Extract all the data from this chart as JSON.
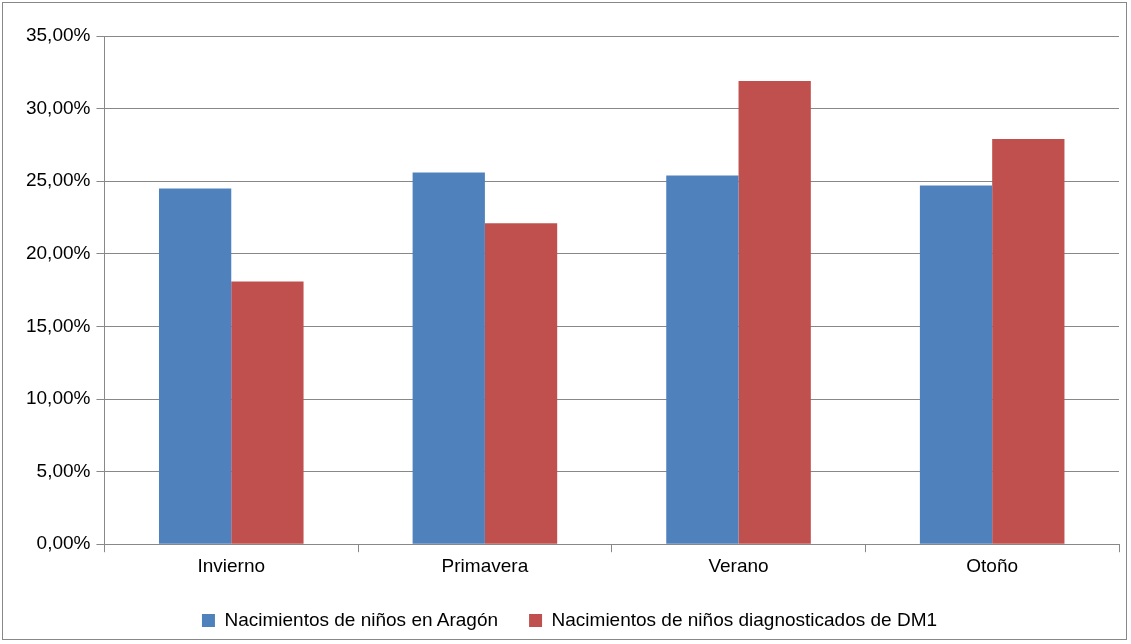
{
  "chart_data": {
    "type": "bar",
    "categories": [
      "Invierno",
      "Primavera",
      "Verano",
      "Otoño"
    ],
    "series": [
      {
        "name": "Nacimientos de niños en Aragón",
        "color": "#4f81bd",
        "values": [
          24.5,
          25.6,
          25.4,
          24.7
        ]
      },
      {
        "name": "Nacimientos de niños diagnosticados de DM1",
        "color": "#c0504d",
        "values": [
          18.1,
          22.1,
          31.9,
          27.9
        ]
      }
    ],
    "ylim": [
      0,
      35
    ],
    "yticks": [
      {
        "value": 0,
        "label": "0,00%"
      },
      {
        "value": 5,
        "label": "5,00%"
      },
      {
        "value": 10,
        "label": "10,00%"
      },
      {
        "value": 15,
        "label": "15,00%"
      },
      {
        "value": 20,
        "label": "20,00%"
      },
      {
        "value": 25,
        "label": "25,00%"
      },
      {
        "value": 30,
        "label": "30,00%"
      },
      {
        "value": 35,
        "label": "35,00%"
      }
    ],
    "grid": "y",
    "legend": "bottom"
  }
}
